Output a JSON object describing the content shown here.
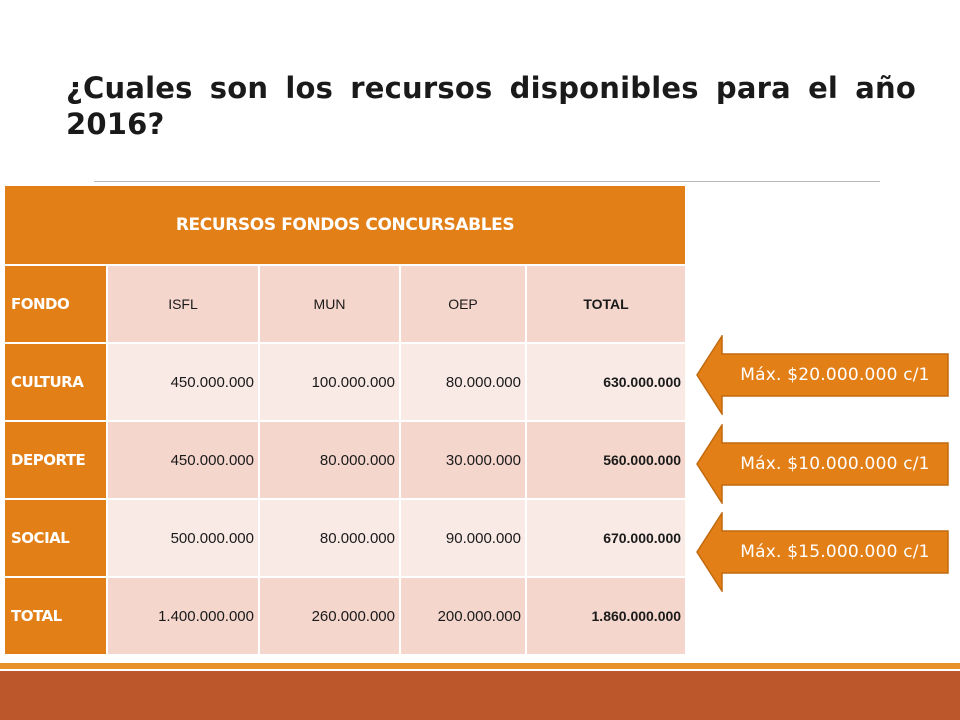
{
  "slide": {
    "title": "¿Cuales son los recursos disponibles para el año 2016?"
  },
  "table": {
    "header": "RECURSOS FONDOS CONCURSABLES",
    "columns": [
      "FONDO",
      "ISFL",
      "MUN",
      "OEP",
      "TOTAL"
    ],
    "rows": [
      {
        "label": "CULTURA",
        "isfl": "450.000.000",
        "mun": "100.000.000",
        "oep": "80.000.000",
        "total": "630.000.000"
      },
      {
        "label": "DEPORTE",
        "isfl": "450.000.000",
        "mun": "80.000.000",
        "oep": "30.000.000",
        "total": "560.000.000"
      },
      {
        "label": "SOCIAL",
        "isfl": "500.000.000",
        "mun": "80.000.000",
        "oep": "90.000.000",
        "total": "670.000.000"
      },
      {
        "label": "TOTAL",
        "isfl": "1.400.000.000",
        "mun": "260.000.000",
        "oep": "200.000.000",
        "total": "1.860.000.000"
      }
    ]
  },
  "callouts": [
    {
      "text": "Máx. $20.000.000 c/1"
    },
    {
      "text": "Máx. $10.000.000 c/1"
    },
    {
      "text": "Máx. $15.000.000 c/1"
    }
  ],
  "colors": {
    "accent_orange": "#e27f17",
    "row_odd": "#f4d6cc",
    "row_even": "#f9eae6",
    "footer_band": "#bc562b",
    "footer_line": "#e8912a"
  }
}
